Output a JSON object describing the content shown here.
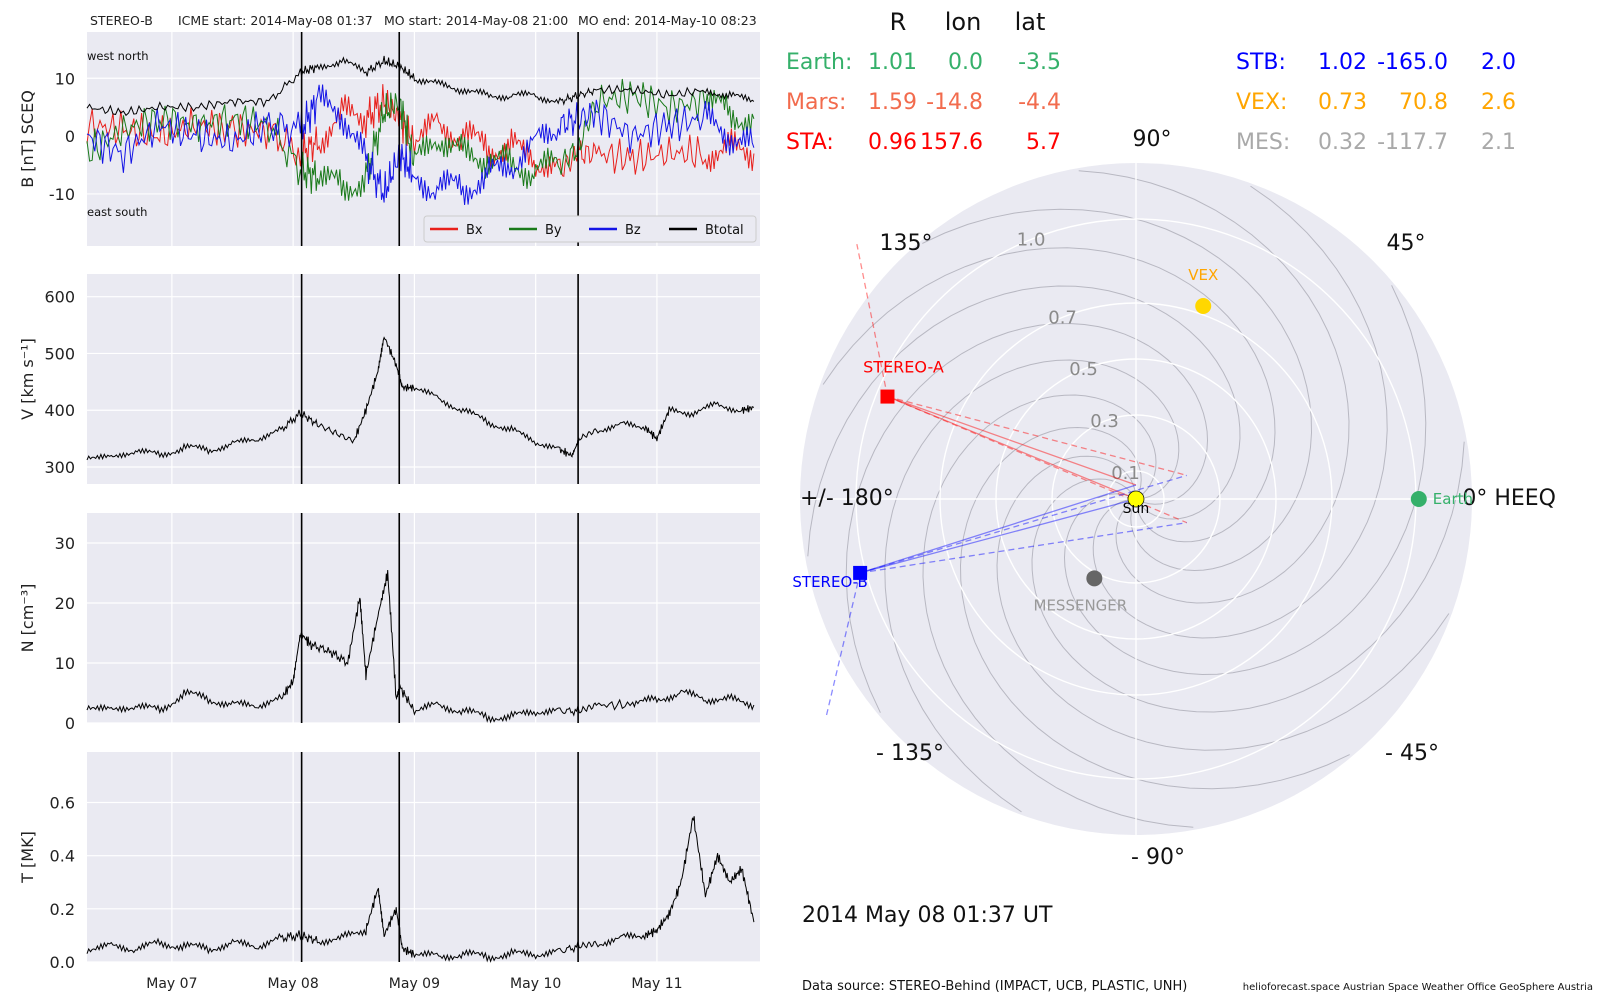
{
  "header": {
    "spacecraft": "STEREO-B",
    "icme_start": "ICME start: 2014-May-08 01:37",
    "mo_start": "MO start: 2014-May-08 21:00",
    "mo_end": "MO end: 2014-May-10 08:23"
  },
  "footer": {
    "source": "Data source: STEREO-Behind (IMPACT, UCB, PLASTIC, UNH)",
    "credits": "helioforecast.space   Austrian Space Weather Office   GeoSphere Austria"
  },
  "chart_data": [
    {
      "type": "line",
      "ylabel": "B [nT] SCEQ",
      "ylim": [
        -19,
        18
      ],
      "yticks": [
        "10",
        "0",
        "-10"
      ],
      "ytick_values": [
        10,
        0,
        -10
      ],
      "annotations": {
        "top_left": "west    north",
        "bottom_left": "east    south"
      },
      "legend_position": "bottom-right",
      "series": [
        {
          "name": "Bx",
          "color": "#e8201c",
          "x": [
            6.3,
            6.6,
            6.9,
            7.2,
            7.5,
            7.8,
            8.06,
            8.2,
            8.4,
            8.6,
            8.75,
            8.88,
            9.0,
            9.2,
            9.4,
            9.6,
            9.8,
            10.0,
            10.2,
            10.35,
            10.5,
            10.8,
            11.1,
            11.4,
            11.6,
            11.8
          ],
          "values": [
            2,
            1,
            0,
            2,
            1,
            1,
            -3,
            -1,
            4,
            3,
            6,
            3,
            -1,
            2,
            0,
            -2,
            -2,
            -4,
            -6,
            -3,
            -3,
            -4,
            -3,
            -3,
            -2,
            -3
          ]
        },
        {
          "name": "By",
          "color": "#1a7a1a",
          "x": [
            6.3,
            6.6,
            6.9,
            7.2,
            7.5,
            7.8,
            8.06,
            8.2,
            8.4,
            8.6,
            8.75,
            8.88,
            9.0,
            9.2,
            9.4,
            9.6,
            9.8,
            10.0,
            10.2,
            10.35,
            10.5,
            10.8,
            11.1,
            11.4,
            11.6,
            11.8
          ],
          "values": [
            -3,
            1,
            3,
            2,
            3,
            2,
            -6,
            -7,
            -9,
            -7,
            4,
            6,
            -5,
            0,
            -3,
            -4,
            -5,
            -6,
            -5,
            -2,
            6,
            7,
            5,
            6,
            4,
            3
          ]
        },
        {
          "name": "Bz",
          "color": "#1414e6",
          "x": [
            6.3,
            6.6,
            6.9,
            7.2,
            7.5,
            7.8,
            8.06,
            8.2,
            8.4,
            8.6,
            8.75,
            8.88,
            9.0,
            9.2,
            9.4,
            9.6,
            9.8,
            10.0,
            10.2,
            10.35,
            10.5,
            10.8,
            11.1,
            11.4,
            11.6,
            11.8
          ],
          "values": [
            0,
            -3,
            2,
            0,
            -1,
            2,
            1,
            6,
            4,
            -4,
            -10,
            -3,
            -7,
            -9,
            -9,
            -7,
            -5,
            -1,
            2,
            3,
            4,
            0,
            2,
            3,
            0,
            -2
          ]
        },
        {
          "name": "Btotal",
          "color": "#000000",
          "x": [
            6.3,
            6.6,
            6.9,
            7.2,
            7.5,
            7.8,
            8.06,
            8.2,
            8.4,
            8.6,
            8.75,
            8.88,
            9.0,
            9.2,
            9.4,
            9.6,
            9.8,
            10.0,
            10.2,
            10.35,
            10.5,
            10.8,
            11.1,
            11.4,
            11.6,
            11.8
          ],
          "values": [
            5,
            4,
            5,
            5,
            6,
            6,
            11,
            12,
            13,
            11,
            13,
            12,
            10,
            9,
            8,
            7,
            7,
            7,
            6,
            7,
            8,
            8,
            7,
            8,
            7,
            6
          ]
        }
      ]
    },
    {
      "type": "line",
      "ylabel": "V [km s⁻¹]",
      "ylim": [
        270,
        640
      ],
      "yticks": [
        "600",
        "500",
        "400",
        "300"
      ],
      "ytick_values": [
        600,
        500,
        400,
        300
      ],
      "series": [
        {
          "name": "",
          "color": "#000000",
          "x": [
            6.3,
            6.5,
            6.7,
            6.9,
            7.1,
            7.3,
            7.5,
            7.7,
            7.9,
            8.06,
            8.2,
            8.35,
            8.5,
            8.6,
            8.7,
            8.75,
            8.85,
            8.9,
            9.0,
            9.2,
            9.4,
            9.6,
            9.8,
            10.0,
            10.2,
            10.3,
            10.36,
            10.5,
            10.7,
            10.9,
            11.0,
            11.1,
            11.3,
            11.5,
            11.7,
            11.8
          ],
          "values": [
            320,
            315,
            330,
            320,
            335,
            330,
            340,
            350,
            365,
            395,
            375,
            360,
            345,
            400,
            470,
            530,
            480,
            440,
            440,
            420,
            400,
            380,
            365,
            345,
            330,
            320,
            350,
            365,
            375,
            370,
            350,
            400,
            395,
            410,
            400,
            405
          ]
        }
      ]
    },
    {
      "type": "line",
      "ylabel": "N [cm⁻³]",
      "ylim": [
        0,
        35
      ],
      "yticks": [
        "30",
        "20",
        "10",
        "0"
      ],
      "ytick_values": [
        30,
        20,
        10,
        0
      ],
      "series": [
        {
          "name": "",
          "color": "#000000",
          "x": [
            6.3,
            6.5,
            6.7,
            6.9,
            7.1,
            7.3,
            7.5,
            7.7,
            7.9,
            8.0,
            8.06,
            8.15,
            8.3,
            8.45,
            8.55,
            8.6,
            8.7,
            8.78,
            8.85,
            8.88,
            9.0,
            9.2,
            9.4,
            9.6,
            9.8,
            10.0,
            10.2,
            10.36,
            10.5,
            10.8,
            11.0,
            11.2,
            11.4,
            11.6,
            11.8
          ],
          "values": [
            3,
            2,
            3,
            2,
            5,
            4,
            3,
            3,
            4,
            7,
            15,
            13,
            12,
            10,
            21,
            8,
            18,
            25,
            4,
            6,
            2,
            3,
            2,
            1,
            1,
            2,
            2,
            2,
            3,
            3,
            4,
            5,
            4,
            4,
            3
          ]
        }
      ]
    },
    {
      "type": "line",
      "ylabel": "T [MK]",
      "ylim": [
        0,
        0.79
      ],
      "yticks": [
        "0.6",
        "0.4",
        "0.2",
        "0.0"
      ],
      "ytick_values": [
        0.6,
        0.4,
        0.2,
        0
      ],
      "xticks": [
        "May 07",
        "May 08",
        "May 09",
        "May 10",
        "May 11"
      ],
      "xtick_values": [
        7,
        8,
        9,
        10,
        11
      ],
      "series": [
        {
          "name": "",
          "color": "#000000",
          "x": [
            6.3,
            6.5,
            6.7,
            6.9,
            7.1,
            7.3,
            7.5,
            7.7,
            7.9,
            8.06,
            8.2,
            8.4,
            8.6,
            8.7,
            8.75,
            8.85,
            8.9,
            9.0,
            9.2,
            9.4,
            9.6,
            9.8,
            10.0,
            10.2,
            10.36,
            10.5,
            10.7,
            10.9,
            11.0,
            11.1,
            11.2,
            11.3,
            11.4,
            11.5,
            11.6,
            11.7,
            11.8
          ],
          "values": [
            0.05,
            0.06,
            0.05,
            0.07,
            0.06,
            0.05,
            0.07,
            0.06,
            0.09,
            0.1,
            0.08,
            0.09,
            0.12,
            0.28,
            0.1,
            0.2,
            0.05,
            0.03,
            0.02,
            0.03,
            0.02,
            0.03,
            0.03,
            0.04,
            0.06,
            0.07,
            0.09,
            0.1,
            0.12,
            0.18,
            0.3,
            0.55,
            0.25,
            0.4,
            0.3,
            0.35,
            0.15
          ]
        }
      ]
    },
    {
      "type": "scatter",
      "subtype": "polar",
      "table_header": [
        "R",
        "lon",
        "lat"
      ],
      "table_left": [
        {
          "name": "Earth:",
          "R": "1.01",
          "lon": "0.0",
          "lat": "-3.5",
          "color": "#35b06a"
        },
        {
          "name": "Mars:",
          "R": "1.59",
          "lon": "-14.8",
          "lat": "-4.4",
          "color": "#f26b4d"
        },
        {
          "name": "STA:",
          "R": "0.96",
          "lon": "157.6",
          "lat": "5.7",
          "color": "#ff0000"
        }
      ],
      "table_right": [
        {
          "name": "STB:",
          "R": "1.02",
          "lon": "-165.0",
          "lat": "2.0",
          "color": "#0000ff"
        },
        {
          "name": "VEX:",
          "R": "0.73",
          "lon": "70.8",
          "lat": "2.6",
          "color": "#ffa500"
        },
        {
          "name": "MES:",
          "R": "0.32",
          "lon": "-117.7",
          "lat": "2.1",
          "color": "#a9a9a9"
        }
      ],
      "angle_labels": {
        "a0": "0° HEEQ",
        "a45": "45°",
        "a90": "90°",
        "a135": "135°",
        "a180": "+/- 180°",
        "am135": "- 135°",
        "am90": "- 90°",
        "am45": "- 45°"
      },
      "radial_labels": [
        "0.1",
        "0.3",
        "0.5",
        "0.7",
        "1.0"
      ],
      "radial_values": [
        0.1,
        0.3,
        0.5,
        0.7,
        1.0
      ],
      "rmax": 1.2,
      "points": [
        {
          "label": "Sun",
          "r": 0.0,
          "lon": 0,
          "color": "#ffff00",
          "marker": "circle"
        },
        {
          "label": "Earth",
          "r": 1.01,
          "lon": 0.0,
          "color": "#35b06a",
          "marker": "circle"
        },
        {
          "label": "VEX",
          "r": 0.73,
          "lon": 70.8,
          "color": "#ffd700",
          "marker": "circle"
        },
        {
          "label": "MESSENGER",
          "r": 0.32,
          "lon": -117.7,
          "color": "#666666",
          "marker": "circle"
        },
        {
          "label": "STEREO-A",
          "r": 0.96,
          "lon": 157.6,
          "color": "#ff0000",
          "marker": "square"
        },
        {
          "label": "STEREO-B",
          "r": 1.02,
          "lon": -165.0,
          "color": "#0000ff",
          "marker": "square"
        }
      ],
      "date": "2014 May 08  01:37 UT"
    }
  ]
}
